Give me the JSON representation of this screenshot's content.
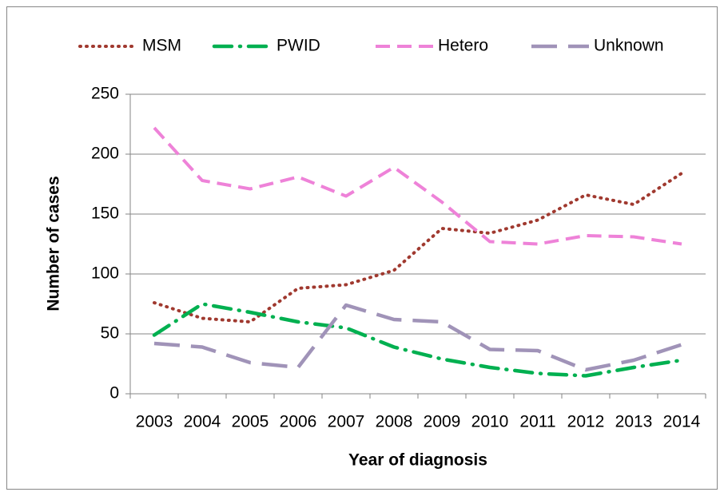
{
  "chart_data": {
    "type": "line",
    "xlabel": "Year of diagnosis",
    "ylabel": "Number of cases",
    "categories": [
      "2003",
      "2004",
      "2005",
      "2006",
      "2007",
      "2008",
      "2009",
      "2010",
      "2011",
      "2012",
      "2013",
      "2014"
    ],
    "series": [
      {
        "name": "MSM",
        "color": "#a0392f",
        "values": [
          76,
          63,
          60,
          88,
          91,
          103,
          138,
          134,
          145,
          166,
          158,
          184
        ]
      },
      {
        "name": "PWID",
        "color": "#00b050",
        "values": [
          49,
          75,
          68,
          60,
          55,
          39,
          29,
          22,
          17,
          15,
          22,
          28
        ]
      },
      {
        "name": "Hetero",
        "color": "#ee82d8",
        "values": [
          222,
          178,
          171,
          181,
          165,
          189,
          160,
          127,
          125,
          132,
          131,
          125
        ]
      },
      {
        "name": "Unknown",
        "color": "#a093b8",
        "values": [
          42,
          39,
          26,
          22,
          74,
          62,
          60,
          37,
          36,
          20,
          28,
          41
        ]
      }
    ],
    "ylim": [
      0,
      250
    ],
    "yticks": [
      0,
      50,
      100,
      150,
      200,
      250
    ],
    "grid": true,
    "legend": "top"
  }
}
